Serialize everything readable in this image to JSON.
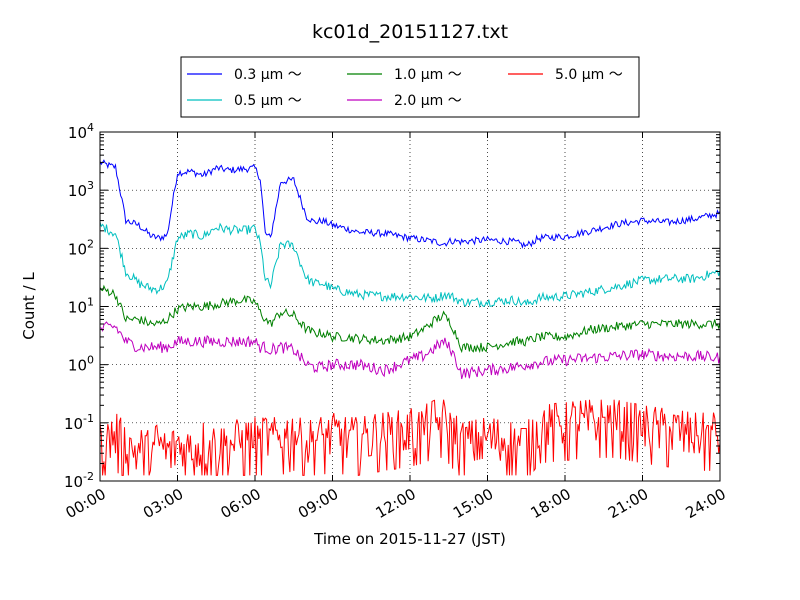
{
  "chart_data": {
    "type": "line",
    "title": "kc01d_20151127.txt",
    "xlabel": "Time on 2015-11-27 (JST)",
    "ylabel": "Count / L",
    "yscale": "log",
    "ylim": [
      0.01,
      10000
    ],
    "xlim": [
      "2015-11-27 00:00",
      "2015-11-28 00:00"
    ],
    "x_ticks": [
      "00:00",
      "03:00",
      "06:00",
      "09:00",
      "12:00",
      "15:00",
      "18:00",
      "21:00",
      "24:00"
    ],
    "y_ticks": [
      {
        "base": "10",
        "exp": "-2"
      },
      {
        "base": "10",
        "exp": "-1"
      },
      {
        "base": "10",
        "exp": "0"
      },
      {
        "base": "10",
        "exp": "1"
      },
      {
        "base": "10",
        "exp": "2"
      },
      {
        "base": "10",
        "exp": "3"
      },
      {
        "base": "10",
        "exp": "4"
      }
    ],
    "grid": true,
    "legend_position": "top-center",
    "x_hours": [
      0,
      0.4,
      0.6,
      1.0,
      1.5,
      2.0,
      2.3,
      2.6,
      3.0,
      3.5,
      4.0,
      4.5,
      5.0,
      5.5,
      6.0,
      6.2,
      6.4,
      6.6,
      7.0,
      7.5,
      8.0,
      8.3,
      8.6,
      9.0,
      9.5,
      10.0,
      11.0,
      12.0,
      12.5,
      13.0,
      13.3,
      13.6,
      14.0,
      15.0,
      16.0,
      16.5,
      17.0,
      18.0,
      19.0,
      20.0,
      21.0,
      22.0,
      23.0,
      24.0
    ],
    "series": [
      {
        "name": "0.3 μm ～",
        "color": "#0000ff",
        "values": [
          3000,
          2600,
          2500,
          300,
          250,
          160,
          150,
          170,
          2000,
          2100,
          1800,
          2400,
          2200,
          2300,
          2400,
          1600,
          180,
          150,
          1400,
          1500,
          350,
          280,
          300,
          250,
          220,
          190,
          180,
          150,
          140,
          130,
          120,
          135,
          130,
          140,
          130,
          110,
          150,
          160,
          200,
          260,
          300,
          280,
          320,
          400
        ]
      },
      {
        "name": "0.5 μm ～",
        "color": "#00bfbf",
        "values": [
          250,
          200,
          180,
          40,
          25,
          20,
          20,
          25,
          150,
          180,
          160,
          230,
          210,
          200,
          220,
          120,
          30,
          22,
          120,
          110,
          30,
          25,
          25,
          20,
          18,
          16,
          15,
          15,
          14,
          14,
          16,
          15,
          12,
          12,
          13,
          11,
          14,
          15,
          18,
          22,
          28,
          30,
          30,
          40
        ]
      },
      {
        "name": "1.0 μm ～",
        "color": "#008000",
        "values": [
          20,
          18,
          16,
          6,
          6,
          5,
          5,
          6,
          9,
          10,
          10,
          11,
          12,
          13,
          12,
          8,
          6,
          5,
          8,
          7,
          4,
          3.5,
          3.5,
          3,
          3,
          2.8,
          2.6,
          3,
          4,
          6,
          7,
          5,
          2,
          2,
          2.5,
          2.5,
          3,
          3,
          4,
          4.5,
          5,
          5,
          5,
          5
        ]
      },
      {
        "name": "2.0 μm ～",
        "color": "#bf00bf",
        "values": [
          4,
          4.5,
          4.5,
          2.5,
          2,
          2,
          2,
          2,
          2.5,
          2.5,
          2.5,
          2.5,
          2.5,
          2.5,
          2.5,
          2,
          2,
          1.8,
          2,
          1.8,
          1,
          0.9,
          0.9,
          1,
          1,
          1,
          0.8,
          1.2,
          1.4,
          2,
          2.5,
          1.8,
          0.7,
          0.8,
          0.9,
          1,
          1.1,
          1.2,
          1.3,
          1.4,
          1.5,
          1.4,
          1.4,
          1.3
        ]
      },
      {
        "name": "5.0 μm ～",
        "color": "#ff0000",
        "values": [
          0.04,
          0.05,
          0.06,
          0.04,
          0.03,
          0.03,
          0.04,
          0.03,
          0.04,
          0.03,
          0.04,
          0.04,
          0.04,
          0.05,
          0.05,
          0.04,
          0.06,
          0.05,
          0.05,
          0.06,
          0.04,
          0.05,
          0.05,
          0.06,
          0.05,
          0.05,
          0.06,
          0.07,
          0.08,
          0.1,
          0.1,
          0.07,
          0.04,
          0.05,
          0.04,
          0.04,
          0.08,
          0.09,
          0.1,
          0.1,
          0.08,
          0.07,
          0.06,
          0.06
        ]
      }
    ]
  }
}
